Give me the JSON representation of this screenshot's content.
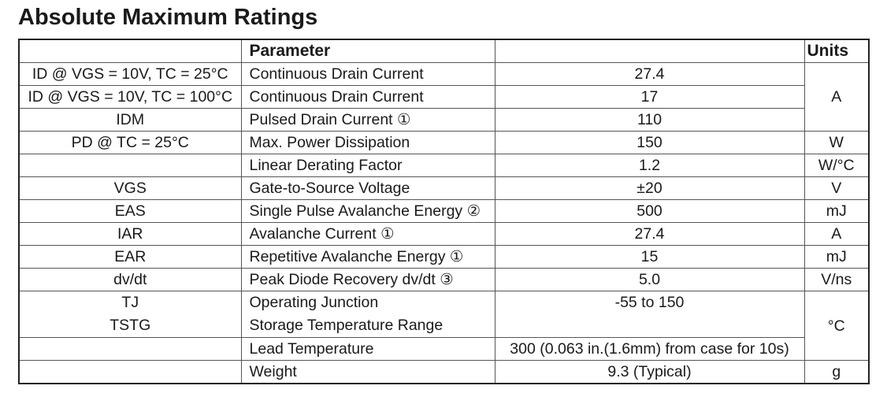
{
  "title": "Absolute Maximum Ratings",
  "header": {
    "symbol": "",
    "parameter": "Parameter",
    "value": "",
    "units": "Units"
  },
  "rows": [
    {
      "symbol": "ID @ VGS = 10V, TC = 25°C",
      "parameter": "Continuous Drain Current",
      "value": "27.4"
    },
    {
      "symbol": "ID @ VGS = 10V, TC = 100°C",
      "parameter": "Continuous Drain Current",
      "value": "17"
    },
    {
      "symbol": "IDM",
      "parameter": "Pulsed Drain Current ①",
      "value": "110"
    },
    {
      "symbol": "PD @ TC = 25°C",
      "parameter": "Max. Power Dissipation",
      "value": "150",
      "unit": "W"
    },
    {
      "symbol": "",
      "parameter": "Linear Derating Factor",
      "value": "1.2",
      "unit": "W/°C"
    },
    {
      "symbol": "VGS",
      "parameter": "Gate-to-Source Voltage",
      "value": "±20",
      "unit": "V"
    },
    {
      "symbol": "EAS",
      "parameter": "Single Pulse Avalanche Energy ②",
      "value": "500",
      "unit": "mJ"
    },
    {
      "symbol": "IAR",
      "parameter": "Avalanche Current ①",
      "value": "27.4",
      "unit": "A"
    },
    {
      "symbol": "EAR",
      "parameter": "Repetitive Avalanche Energy ①",
      "value": "15",
      "unit": "mJ"
    },
    {
      "symbol": "dv/dt",
      "parameter": "Peak Diode Recovery dv/dt ③",
      "value": "5.0",
      "unit": "V/ns"
    },
    {
      "symbol": "TJ",
      "symbol2": "TSTG",
      "parameter": "Operating Junction",
      "parameter2": "Storage Temperature Range",
      "value": "-55 to 150"
    },
    {
      "symbol": "",
      "parameter": "Lead Temperature",
      "value": "300 (0.063 in.(1.6mm) from case for 10s)"
    },
    {
      "symbol": "",
      "parameter": "Weight",
      "value": "9.3 (Typical)",
      "unit": "g"
    }
  ],
  "merged_units": {
    "current": "A",
    "temperature": "°C"
  }
}
